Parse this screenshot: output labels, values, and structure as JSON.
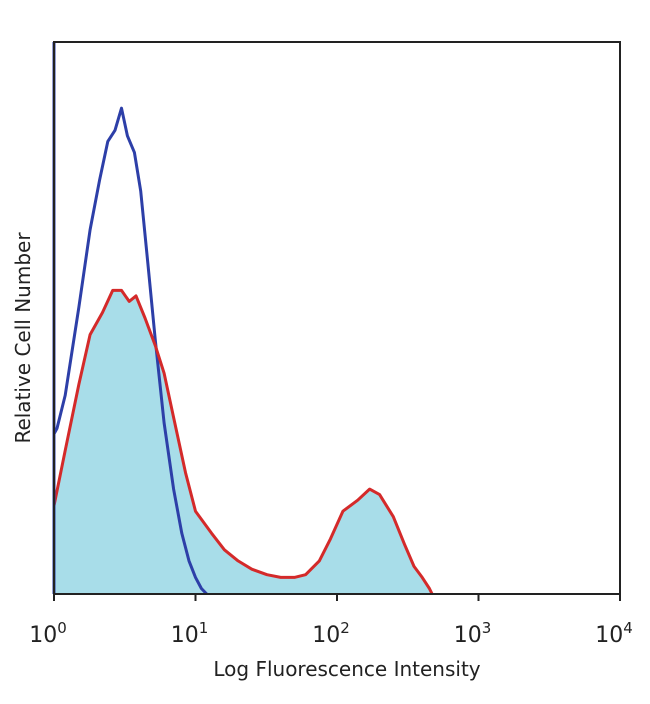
{
  "chart_data": {
    "type": "area",
    "title": "",
    "xlabel": "Log Fluorescence Intensity",
    "ylabel": "Relative Cell Number",
    "x_scale": "log",
    "xlim": [
      1,
      10000
    ],
    "ylim": [
      0,
      1
    ],
    "x_ticks": [
      {
        "base": "10",
        "exp": "0",
        "value": 1
      },
      {
        "base": "10",
        "exp": "1",
        "value": 10
      },
      {
        "base": "10",
        "exp": "2",
        "value": 100
      },
      {
        "base": "10",
        "exp": "3",
        "value": 1000
      },
      {
        "base": "10",
        "exp": "4",
        "value": 10000
      }
    ],
    "grid": false,
    "series": [
      {
        "style": "filled",
        "fill": "#a8dde9",
        "stroke": "none",
        "x": [
          1,
          1.2,
          1.5,
          1.8,
          2.2,
          2.6,
          3.0,
          3.4,
          3.8,
          4.4,
          5.2,
          6.0,
          7.0,
          8.5,
          10,
          13,
          16,
          20,
          25,
          32,
          40,
          50,
          60,
          75,
          90,
          110,
          140,
          170,
          200,
          250,
          300,
          350,
          400,
          450,
          470
        ],
        "y": [
          0.16,
          0.26,
          0.38,
          0.47,
          0.51,
          0.55,
          0.55,
          0.53,
          0.54,
          0.5,
          0.45,
          0.4,
          0.32,
          0.22,
          0.15,
          0.11,
          0.08,
          0.06,
          0.045,
          0.035,
          0.03,
          0.03,
          0.035,
          0.06,
          0.1,
          0.15,
          0.17,
          0.19,
          0.18,
          0.14,
          0.09,
          0.05,
          0.03,
          0.01,
          0.0
        ]
      },
      {
        "style": "line",
        "color": "#2d3fa8",
        "x": [
          1,
          1.05,
          1.2,
          1.5,
          1.8,
          2.1,
          2.4,
          2.7,
          3.0,
          3.3,
          3.7,
          4.1,
          4.6,
          5.2,
          6.0,
          7.0,
          8.0,
          9.0,
          10,
          11,
          12
        ],
        "y": [
          0.29,
          0.3,
          0.36,
          0.52,
          0.66,
          0.75,
          0.82,
          0.84,
          0.88,
          0.83,
          0.8,
          0.73,
          0.6,
          0.46,
          0.31,
          0.19,
          0.11,
          0.06,
          0.03,
          0.01,
          0.0
        ]
      },
      {
        "style": "line",
        "color": "#d42a2a",
        "x": [
          1,
          1.2,
          1.5,
          1.8,
          2.2,
          2.6,
          3.0,
          3.4,
          3.8,
          4.4,
          5.2,
          6.0,
          7.0,
          8.5,
          10,
          13,
          16,
          20,
          25,
          32,
          40,
          50,
          60,
          75,
          90,
          110,
          140,
          170,
          200,
          250,
          300,
          350,
          400,
          450,
          470
        ],
        "y": [
          0.16,
          0.26,
          0.38,
          0.47,
          0.51,
          0.55,
          0.55,
          0.53,
          0.54,
          0.5,
          0.45,
          0.4,
          0.32,
          0.22,
          0.15,
          0.11,
          0.08,
          0.06,
          0.045,
          0.035,
          0.03,
          0.03,
          0.035,
          0.06,
          0.1,
          0.15,
          0.17,
          0.19,
          0.18,
          0.14,
          0.09,
          0.05,
          0.03,
          0.01,
          0.0
        ]
      }
    ]
  }
}
